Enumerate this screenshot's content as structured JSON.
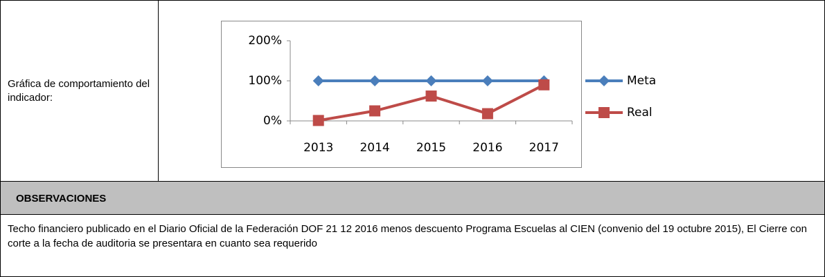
{
  "label": "Gráfica de comportamiento del indicador:",
  "chart_data": {
    "type": "line",
    "categories": [
      "2013",
      "2014",
      "2015",
      "2016",
      "2017"
    ],
    "series": [
      {
        "name": "Meta",
        "color": "#4a7ebb",
        "values": [
          100,
          100,
          100,
          100,
          100
        ]
      },
      {
        "name": "Real",
        "color": "#be4b48",
        "values": [
          1,
          25,
          62,
          18,
          90
        ]
      }
    ],
    "ylim": [
      0,
      200
    ],
    "yticks": [
      {
        "value": 0,
        "label": "0%"
      },
      {
        "value": 100,
        "label": "100%"
      },
      {
        "value": 200,
        "label": "200%"
      }
    ],
    "legend": "right"
  },
  "observaciones": {
    "header": "OBSERVACIONES",
    "text": "Techo financiero publicado en el Diario Oficial de la Federación DOF 21 12 2016 menos descuento Programa Escuelas al CIEN (convenio del 19 octubre 2015), El Cierre con corte a la fecha de auditoria se presentara en cuanto sea requerido"
  }
}
